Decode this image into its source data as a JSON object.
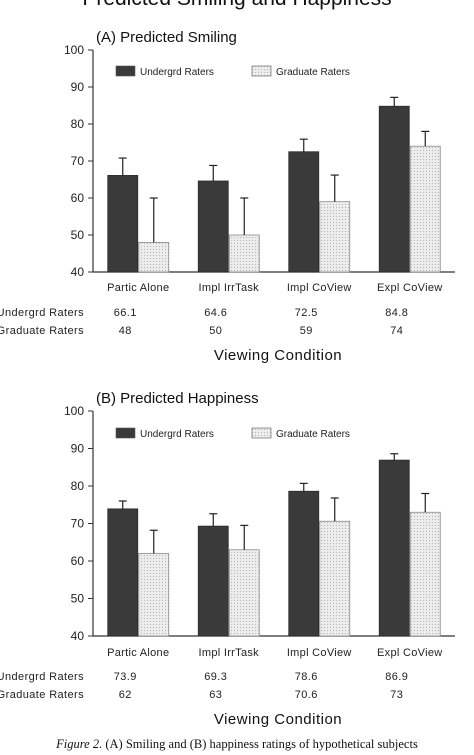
{
  "figure_title": "Predicted Smiling and Happiness",
  "caption_lead": "Figure 2.",
  "caption_rest": " (A) Smiling and (B) happiness ratings of hypothetical subjects",
  "colors": {
    "undergrad": "#3a3a3a",
    "graduate": "#e6e6e6",
    "axis": "#333333"
  },
  "chart_data": [
    {
      "type": "bar",
      "title": "(A) Predicted Smiling",
      "xlabel": "Viewing Condition",
      "ylabel": "",
      "ylim": [
        40,
        100
      ],
      "yticks": [
        40,
        50,
        60,
        70,
        80,
        90,
        100
      ],
      "categories": [
        "Partic Alone",
        "Impl IrrTask",
        "Impl CoView",
        "Expl CoView"
      ],
      "series": [
        {
          "name": "Undergrd Raters",
          "values": [
            66.1,
            64.6,
            72.5,
            84.8
          ],
          "errors": [
            4.7,
            4.2,
            3.4,
            2.4
          ],
          "labels": [
            "66.1",
            "64.6",
            "72.5",
            "84.8"
          ]
        },
        {
          "name": "Graduate Raters",
          "values": [
            48,
            50,
            59,
            74
          ],
          "errors": [
            12,
            10,
            7.2,
            4
          ],
          "labels": [
            "48",
            "50",
            "59",
            "74"
          ]
        }
      ],
      "legend": "top",
      "grid": false
    },
    {
      "type": "bar",
      "title": "(B) Predicted Happiness",
      "xlabel": "Viewing Condition",
      "ylabel": "",
      "ylim": [
        40,
        100
      ],
      "yticks": [
        40,
        50,
        60,
        70,
        80,
        90,
        100
      ],
      "categories": [
        "Partic Alone",
        "Impl IrrTask",
        "Impl CoView",
        "Expl CoView"
      ],
      "series": [
        {
          "name": "Undergrd Raters",
          "values": [
            73.9,
            69.3,
            78.6,
            86.9
          ],
          "errors": [
            2.1,
            3.3,
            2.1,
            1.7
          ],
          "labels": [
            "73.9",
            "69.3",
            "78.6",
            "86.9"
          ]
        },
        {
          "name": "Graduate Raters",
          "values": [
            62,
            63,
            70.6,
            73
          ],
          "errors": [
            6.2,
            6.5,
            6.2,
            5
          ],
          "labels": [
            "62",
            "63",
            "70.6",
            "73"
          ]
        }
      ],
      "legend": "top",
      "grid": false
    }
  ]
}
